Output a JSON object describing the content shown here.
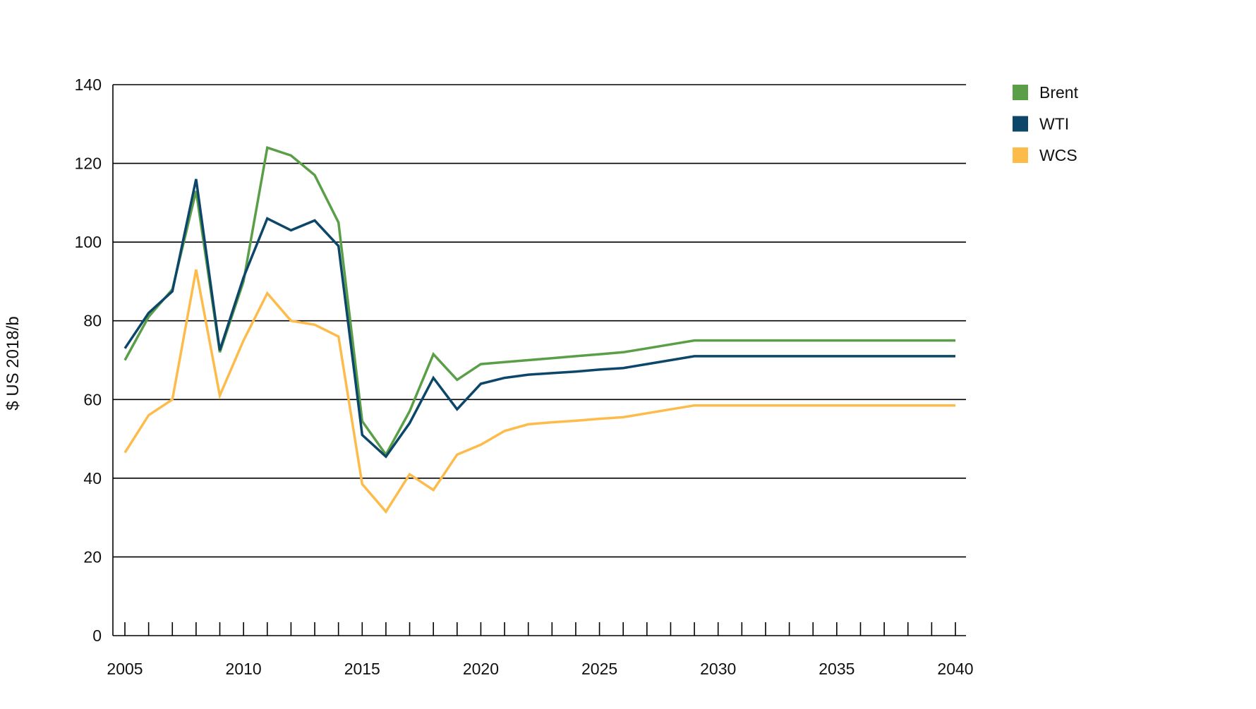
{
  "chart_data": {
    "type": "line",
    "title": "",
    "xlabel": "",
    "ylabel": "$ US 2018/b",
    "xlim": [
      2005,
      2040
    ],
    "ylim": [
      0,
      140
    ],
    "yticks": [
      0,
      20,
      40,
      60,
      80,
      100,
      120,
      140
    ],
    "xticks": [
      2005,
      2010,
      2015,
      2020,
      2025,
      2030,
      2035,
      2040
    ],
    "grid": "horizontal",
    "legend_position": "right",
    "x": [
      2005,
      2006,
      2007,
      2008,
      2009,
      2010,
      2011,
      2012,
      2013,
      2014,
      2015,
      2016,
      2017,
      2018,
      2019,
      2020,
      2021,
      2022,
      2023,
      2024,
      2025,
      2026,
      2027,
      2028,
      2029,
      2030,
      2031,
      2032,
      2033,
      2034,
      2035,
      2036,
      2037,
      2038,
      2039,
      2040
    ],
    "series": [
      {
        "name": "Brent",
        "color": "#5a9e47",
        "values": [
          70,
          81,
          88,
          113,
          72,
          90,
          124,
          122,
          117,
          105,
          54.5,
          46,
          57,
          71.5,
          65,
          69,
          69.5,
          70,
          70.5,
          71,
          71.5,
          72,
          73,
          74,
          75,
          75,
          75,
          75,
          75,
          75,
          75,
          75,
          75,
          75,
          75,
          75
        ]
      },
      {
        "name": "WTI",
        "color": "#0c4669",
        "values": [
          73,
          82,
          87.5,
          116,
          72.5,
          91,
          106,
          103,
          105.5,
          99,
          51,
          45.5,
          54,
          65.5,
          57.5,
          64,
          65.5,
          66.3,
          66.7,
          67.1,
          67.6,
          68,
          69,
          70,
          71,
          71,
          71,
          71,
          71,
          71,
          71,
          71,
          71,
          71,
          71,
          71
        ]
      },
      {
        "name": "WCS",
        "color": "#fdbb4a",
        "values": [
          46.5,
          56,
          60,
          93,
          61,
          75,
          87,
          80,
          79,
          76,
          38.5,
          31.5,
          41,
          37,
          46,
          48.5,
          52,
          53.7,
          54.2,
          54.6,
          55.1,
          55.5,
          56.5,
          57.5,
          58.5,
          58.5,
          58.5,
          58.5,
          58.5,
          58.5,
          58.5,
          58.5,
          58.5,
          58.5,
          58.5,
          58.5
        ]
      }
    ]
  }
}
